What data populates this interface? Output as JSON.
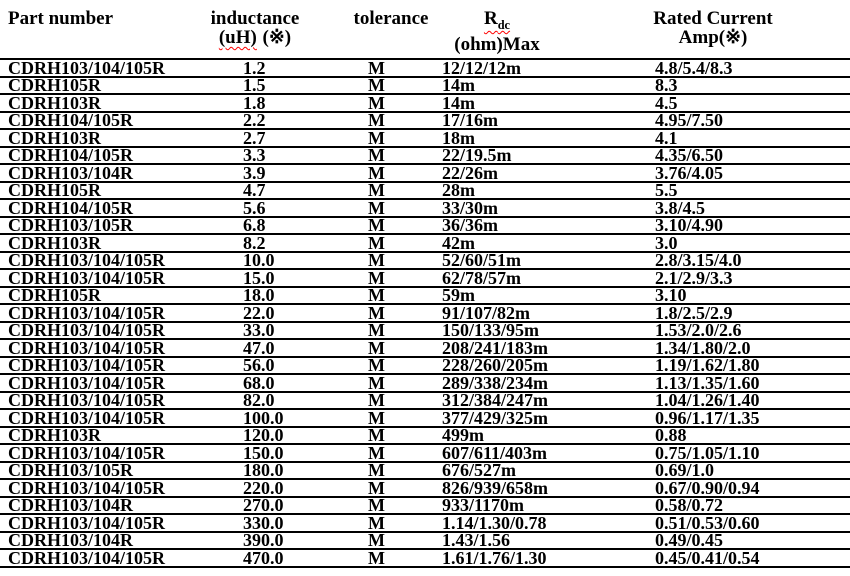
{
  "page": {
    "background": "#ffffff",
    "text_color": "#000000",
    "spellcheck_squiggle_color": "#ff0000"
  },
  "header": {
    "part_number": "Part number",
    "inductance_line1": "inductance",
    "inductance_unit": "(uH)",
    "inductance_note": "(※)",
    "tolerance": "tolerance",
    "rdc_symbol": "R",
    "rdc_subscript": "dc",
    "rdc_line2": "(ohm)Max",
    "rated_line1": "Rated Current",
    "rated_line2": "Amp(※)"
  },
  "columns": [
    "part-number",
    "inductance",
    "tolerance",
    "rdc",
    "rated-current"
  ],
  "rows": [
    [
      "CDRH103/104/105R",
      "1.2",
      "M",
      "12/12/12m",
      "4.8/5.4/8.3"
    ],
    [
      "CDRH105R",
      "1.5",
      "M",
      "14m",
      "8.3"
    ],
    [
      "CDRH103R",
      "1.8",
      "M",
      "14m",
      "4.5"
    ],
    [
      "CDRH104/105R",
      "2.2",
      "M",
      "17/16m",
      "4.95/7.50"
    ],
    [
      "CDRH103R",
      "2.7",
      "M",
      "18m",
      "4.1"
    ],
    [
      "CDRH104/105R",
      "3.3",
      "M",
      "22/19.5m",
      "4.35/6.50"
    ],
    [
      "CDRH103/104R",
      "3.9",
      "M",
      "22/26m",
      "3.76/4.05"
    ],
    [
      "CDRH105R",
      "4.7",
      "M",
      "28m",
      "5.5"
    ],
    [
      "CDRH104/105R",
      "5.6",
      "M",
      "33/30m",
      "3.8/4.5"
    ],
    [
      "CDRH103/105R",
      "6.8",
      "M",
      "36/36m",
      "3.10/4.90"
    ],
    [
      "CDRH103R",
      "8.2",
      "M",
      "42m",
      "3.0"
    ],
    [
      "CDRH103/104/105R",
      "10.0",
      "M",
      "52/60/51m",
      "2.8/3.15/4.0"
    ],
    [
      "CDRH103/104/105R",
      "15.0",
      "M",
      "62/78/57m",
      "2.1/2.9/3.3"
    ],
    [
      "CDRH105R",
      "18.0",
      "M",
      "59m",
      "3.10"
    ],
    [
      "CDRH103/104/105R",
      "22.0",
      "M",
      "91/107/82m",
      "1.8/2.5/2.9"
    ],
    [
      "CDRH103/104/105R",
      "33.0",
      "M",
      "150/133/95m",
      "1.53/2.0/2.6"
    ],
    [
      "CDRH103/104/105R",
      "47.0",
      "M",
      "208/241/183m",
      "1.34/1.80/2.0"
    ],
    [
      "CDRH103/104/105R",
      "56.0",
      "M",
      "228/260/205m",
      "1.19/1.62/1.80"
    ],
    [
      "CDRH103/104/105R",
      "68.0",
      "M",
      "289/338/234m",
      "1.13/1.35/1.60"
    ],
    [
      "CDRH103/104/105R",
      "82.0",
      "M",
      "312/384/247m",
      "1.04/1.26/1.40"
    ],
    [
      "CDRH103/104/105R",
      "100.0",
      "M",
      "377/429/325m",
      "0.96/1.17/1.35"
    ],
    [
      "CDRH103R",
      "120.0",
      "M",
      "499m",
      "0.88"
    ],
    [
      "CDRH103/104/105R",
      "150.0",
      "M",
      "607/611/403m",
      "0.75/1.05/1.10"
    ],
    [
      "CDRH103/105R",
      "180.0",
      "M",
      "676/527m",
      "0.69/1.0"
    ],
    [
      "CDRH103/104/105R",
      "220.0",
      "M",
      "826/939/658m",
      "0.67/0.90/0.94"
    ],
    [
      "CDRH103/104R",
      "270.0",
      "M",
      "933/1170m",
      "0.58/0.72"
    ],
    [
      "CDRH103/104/105R",
      "330.0",
      "M",
      "1.14/1.30/0.78",
      "0.51/0.53/0.60"
    ],
    [
      "CDRH103/104R",
      "390.0",
      "M",
      "1.43/1.56",
      "0.49/0.45"
    ],
    [
      "CDRH103/104/105R",
      "470.0",
      "M",
      "1.61/1.76/1.30",
      "0.45/0.41/0.54"
    ]
  ]
}
